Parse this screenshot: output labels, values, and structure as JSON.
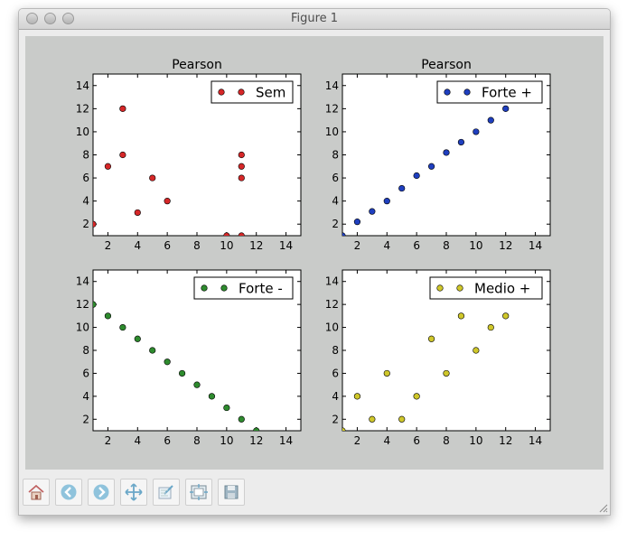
{
  "window": {
    "title": "Figure 1"
  },
  "toolbar": {
    "buttons": [
      {
        "name": "home-icon"
      },
      {
        "name": "back-arrow-icon"
      },
      {
        "name": "forward-arrow-icon"
      },
      {
        "name": "pan-icon"
      },
      {
        "name": "zoom-rect-icon"
      },
      {
        "name": "subplots-config-icon"
      },
      {
        "name": "save-icon"
      }
    ]
  },
  "chart_data": [
    {
      "type": "scatter",
      "title": "Pearson",
      "xlim": [
        1,
        15
      ],
      "ylim": [
        1,
        15
      ],
      "xticks": [
        2,
        4,
        6,
        8,
        10,
        12,
        14
      ],
      "yticks": [
        2,
        4,
        6,
        8,
        10,
        12,
        14
      ],
      "legend_position": "top-right",
      "series": [
        {
          "name": "Sem",
          "color": "#d62728",
          "x": [
            1,
            2,
            3,
            3,
            4,
            5,
            6,
            10,
            11,
            11,
            11,
            11
          ],
          "y": [
            2,
            7,
            12,
            8,
            3,
            6,
            4,
            1,
            8,
            7,
            6,
            1
          ]
        }
      ]
    },
    {
      "type": "scatter",
      "title": "Pearson",
      "xlim": [
        1,
        15
      ],
      "ylim": [
        1,
        15
      ],
      "xticks": [
        2,
        4,
        6,
        8,
        10,
        12,
        14
      ],
      "yticks": [
        2,
        4,
        6,
        8,
        10,
        12,
        14
      ],
      "legend_position": "top-right",
      "series": [
        {
          "name": "Forte +",
          "color": "#1f3fbf",
          "x": [
            1,
            2,
            3,
            4,
            5,
            6,
            7,
            8,
            9,
            10,
            11,
            12
          ],
          "y": [
            1,
            2.2,
            3.1,
            4,
            5.1,
            6.2,
            7,
            8.2,
            9.1,
            10,
            11,
            12
          ]
        }
      ]
    },
    {
      "type": "scatter",
      "title": "",
      "xlim": [
        1,
        15
      ],
      "ylim": [
        1,
        15
      ],
      "xticks": [
        2,
        4,
        6,
        8,
        10,
        12,
        14
      ],
      "yticks": [
        2,
        4,
        6,
        8,
        10,
        12,
        14
      ],
      "legend_position": "top-right",
      "series": [
        {
          "name": "Forte -",
          "color": "#2e8b2e",
          "x": [
            1,
            2,
            3,
            4,
            5,
            6,
            7,
            8,
            9,
            10,
            11,
            12
          ],
          "y": [
            12,
            11,
            10,
            9,
            8,
            7,
            6,
            5,
            4,
            3,
            2,
            1
          ]
        }
      ]
    },
    {
      "type": "scatter",
      "title": "",
      "xlim": [
        1,
        15
      ],
      "ylim": [
        1,
        15
      ],
      "xticks": [
        2,
        4,
        6,
        8,
        10,
        12,
        14
      ],
      "yticks": [
        2,
        4,
        6,
        8,
        10,
        12,
        14
      ],
      "legend_position": "top-right",
      "series": [
        {
          "name": "Medio +",
          "color": "#cfc72a",
          "x": [
            1,
            2,
            3,
            4,
            5,
            6,
            7,
            8,
            9,
            10,
            11,
            12
          ],
          "y": [
            1,
            4,
            2,
            6,
            2,
            4,
            9,
            6,
            11,
            8,
            10,
            11
          ]
        }
      ]
    }
  ]
}
